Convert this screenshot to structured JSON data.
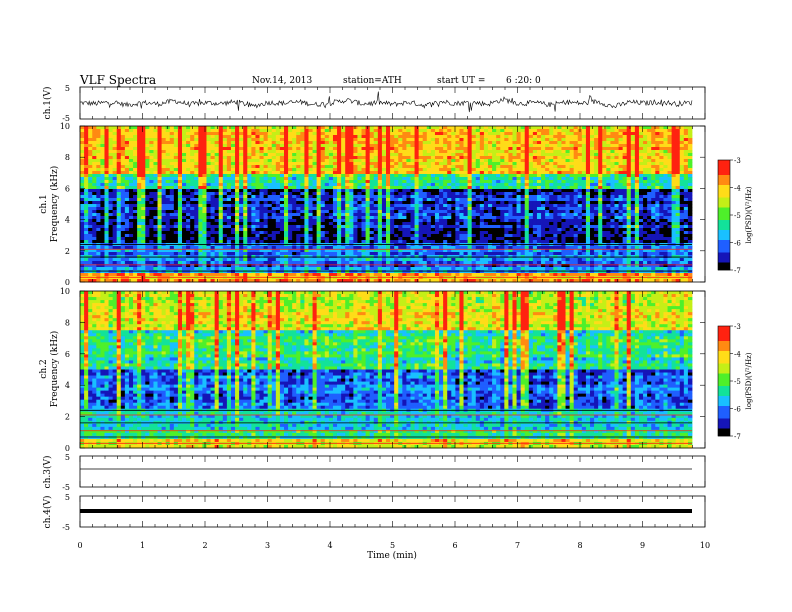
{
  "header": {
    "title": "VLF  Spectra",
    "date": "Nov.14, 2013",
    "station": "station=ATH",
    "start_label": "start  UT  =",
    "start_time": "6  :20: 0"
  },
  "chart_data": [
    {
      "type": "line",
      "id": "ch1-waveform",
      "ylabel": "ch.1(V)",
      "ylim": [
        -5,
        5
      ],
      "yticks": [
        "5",
        "-5"
      ],
      "xlim": [
        0,
        10
      ],
      "series": [
        {
          "values_desc": "noisy waveform around 0 V with spikes up to ±3 V",
          "values": [
            0.2,
            -0.4,
            0.6,
            -1.2,
            0.3,
            -0.6,
            1.4,
            -0.9,
            0.2,
            -0.3,
            0.8,
            -2.1,
            0.4,
            -0.2,
            0.7,
            -1.0,
            0.1,
            1.8,
            -0.5,
            0.3,
            -0.8,
            0.5,
            -1.6,
            0.9,
            -0.2,
            0.4,
            -0.7,
            2.3,
            -0.4,
            0.2,
            -1.1,
            0.6,
            -0.3,
            1.0,
            -2.4,
            0.5,
            -0.1,
            0.8,
            -0.6,
            0.3
          ]
        }
      ]
    },
    {
      "type": "heatmap",
      "id": "ch1-spectrogram",
      "ylabel_channel": "ch.1",
      "ylabel": "Frequency  (kHz)",
      "ylim": [
        0,
        10
      ],
      "yticks": [
        "0",
        "2",
        "4",
        "6",
        "8",
        "10"
      ],
      "xlim": [
        0,
        10
      ],
      "colorbar": {
        "label": "log(PSD)(V²/Hz)",
        "range": [
          -7,
          -3
        ],
        "ticks": [
          "-3",
          "-4",
          "-5",
          "-6",
          "-7"
        ]
      },
      "bands_logpsd": [
        {
          "f": [
            0,
            0.5
          ],
          "v": -3.9
        },
        {
          "f": [
            0.5,
            2.5
          ],
          "v": -6.0
        },
        {
          "f": [
            2.5,
            6.0
          ],
          "v": -6.4
        },
        {
          "f": [
            6.0,
            7.0
          ],
          "v": -5.2
        },
        {
          "f": [
            7.0,
            10.0
          ],
          "v": -4.0
        }
      ]
    },
    {
      "type": "heatmap",
      "id": "ch2-spectrogram",
      "ylabel_channel": "ch.2",
      "ylabel": "Frequency  (kHz)",
      "ylim": [
        0,
        10
      ],
      "yticks": [
        "0",
        "2",
        "4",
        "6",
        "8",
        "10"
      ],
      "xlim": [
        0,
        10
      ],
      "colorbar": {
        "label": "log(PSD)(V²/Hz)",
        "range": [
          -7,
          -3
        ],
        "ticks": [
          "-3",
          "-4",
          "-5",
          "-6",
          "-7"
        ]
      },
      "bands_logpsd": [
        {
          "f": [
            0,
            0.5
          ],
          "v": -4.2
        },
        {
          "f": [
            0.5,
            2.5
          ],
          "v": -5.3
        },
        {
          "f": [
            2.5,
            5.0
          ],
          "v": -6.0
        },
        {
          "f": [
            5.0,
            7.5
          ],
          "v": -5.2
        },
        {
          "f": [
            7.5,
            10.0
          ],
          "v": -4.3
        }
      ]
    },
    {
      "type": "line",
      "id": "ch3-waveform",
      "ylabel": "ch.3(V)",
      "ylim": [
        -5,
        5
      ],
      "yticks": [
        "5",
        "-5"
      ],
      "xlim": [
        0,
        10
      ],
      "series": [
        {
          "values": [
            0,
            0,
            0,
            0,
            0,
            0,
            0,
            0,
            0,
            0
          ]
        }
      ]
    },
    {
      "type": "line",
      "id": "ch4-waveform",
      "ylabel": "ch.4(V)",
      "ylim": [
        -5,
        5
      ],
      "yticks": [
        "5",
        "-5"
      ],
      "xlim": [
        0,
        10
      ],
      "series": [
        {
          "values": [
            0,
            0,
            0,
            0,
            0,
            0,
            0,
            0,
            0,
            0
          ]
        }
      ]
    }
  ],
  "xaxis": {
    "label": "Time  (min)",
    "ticks": [
      "0",
      "1",
      "2",
      "3",
      "4",
      "5",
      "6",
      "7",
      "8",
      "9",
      "10"
    ]
  },
  "colors": {
    "colormap": [
      "#000000",
      "#1515b8",
      "#1f5fff",
      "#19c0ff",
      "#12e29a",
      "#4ef02a",
      "#c4ef17",
      "#ffdc18",
      "#ff8a12",
      "#ff2210",
      "#ffd9d9"
    ]
  }
}
